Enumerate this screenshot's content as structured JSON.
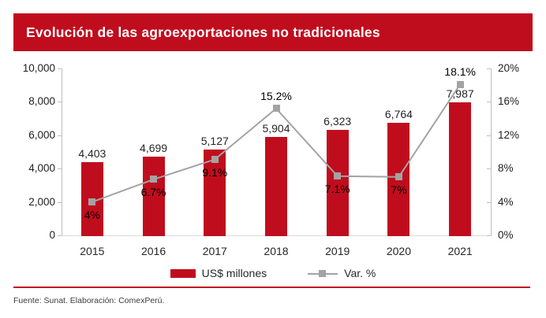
{
  "header": {
    "title": "Evolución de las agroexportaciones no tradicionales"
  },
  "footer": {
    "source": "Fuente: Sunat. Elaboración: ComexPerú."
  },
  "colors": {
    "brand_red": "#C00D1E",
    "line_gray": "#A3A3A3",
    "axis_gray": "#BFBFBF",
    "grid_gray": "#D9D9D9",
    "label_dark": "#262626"
  },
  "chart_data": {
    "type": "bar",
    "subtype": "combo bar + line, dual axis",
    "title": "Evolución de las agroexportaciones no tradicionales",
    "categories": [
      "2015",
      "2016",
      "2017",
      "2018",
      "2019",
      "2020",
      "2021"
    ],
    "series": [
      {
        "name": "US$ millones",
        "type": "bar",
        "axis": "left",
        "values": [
          4403,
          4699,
          5127,
          5904,
          6323,
          6764,
          7987
        ],
        "labels": [
          "4,403",
          "4,699",
          "5,127",
          "5,904",
          "6,323",
          "6,764",
          "7,987"
        ]
      },
      {
        "name": "Var. %",
        "type": "line",
        "axis": "right",
        "values": [
          4,
          6.7,
          9.1,
          15.2,
          7.1,
          7,
          18.1
        ],
        "labels": [
          "4%",
          "6.7%",
          "9.1%",
          "15.2%",
          "7.1%",
          "7%",
          "18.1%"
        ],
        "label_position": [
          "below",
          "below",
          "below",
          "above",
          "below",
          "below",
          "above"
        ]
      }
    ],
    "left_axis": {
      "min": 0,
      "max": 10000,
      "step": 2000,
      "ticks": [
        "0",
        "2,000",
        "4,000",
        "6,000",
        "8,000",
        "10,000"
      ]
    },
    "right_axis": {
      "min": 0,
      "max": 20,
      "step": 4,
      "ticks": [
        "0%",
        "4%",
        "8%",
        "12%",
        "16%",
        "20%"
      ]
    },
    "legend": [
      {
        "label": "US$ millones",
        "swatch": "bar"
      },
      {
        "label": "Var. %",
        "swatch": "line"
      }
    ],
    "grid": "off",
    "legend_position": "bottom-center"
  }
}
